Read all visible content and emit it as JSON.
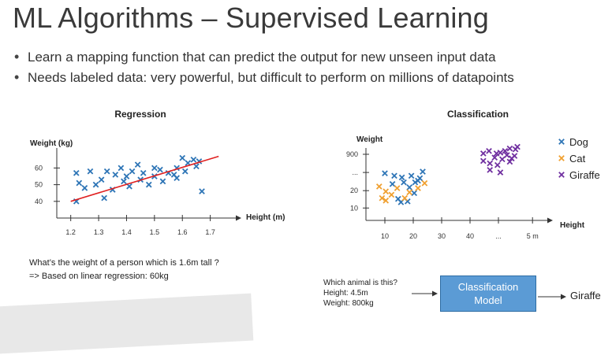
{
  "title": "ML Algorithms – Supervised Learning",
  "bullets": [
    "Learn a mapping function that can predict the output for new unseen input data",
    "Needs labeled data: very powerful, but difficult to perform on millions of datapoints"
  ],
  "question": {
    "line1": "What’s the weight of a person which is 1.6m tall ?",
    "line2": "=> Based on linear regression: 60kg"
  },
  "classify": {
    "which_lines": [
      "Which animal is this?",
      "Height: 4.5m",
      "Weight: 800kg"
    ],
    "model_line1": "Classification",
    "model_line2": "Model",
    "answer": "Giraffe"
  },
  "chart_data": [
    {
      "type": "scatter",
      "title": "Regression",
      "xlabel": "Height (m)",
      "ylabel": "Weight (kg)",
      "x_ticks": [
        "1.2",
        "1.3",
        "1.4",
        "1.5",
        "1.6",
        "1.7"
      ],
      "y_ticks": [
        "60",
        "50",
        "40"
      ],
      "xlim": [
        1.15,
        1.8
      ],
      "ylim": [
        30,
        72
      ],
      "points": [
        {
          "x": 1.22,
          "y": 40
        },
        {
          "x": 1.23,
          "y": 51
        },
        {
          "x": 1.22,
          "y": 57
        },
        {
          "x": 1.25,
          "y": 48
        },
        {
          "x": 1.27,
          "y": 58
        },
        {
          "x": 1.29,
          "y": 50
        },
        {
          "x": 1.31,
          "y": 53
        },
        {
          "x": 1.32,
          "y": 42
        },
        {
          "x": 1.33,
          "y": 58
        },
        {
          "x": 1.35,
          "y": 47
        },
        {
          "x": 1.36,
          "y": 56
        },
        {
          "x": 1.38,
          "y": 60
        },
        {
          "x": 1.39,
          "y": 52
        },
        {
          "x": 1.4,
          "y": 55
        },
        {
          "x": 1.41,
          "y": 49
        },
        {
          "x": 1.42,
          "y": 58
        },
        {
          "x": 1.44,
          "y": 62
        },
        {
          "x": 1.45,
          "y": 53
        },
        {
          "x": 1.46,
          "y": 57
        },
        {
          "x": 1.48,
          "y": 50
        },
        {
          "x": 1.5,
          "y": 55
        },
        {
          "x": 1.5,
          "y": 60
        },
        {
          "x": 1.52,
          "y": 59
        },
        {
          "x": 1.53,
          "y": 52
        },
        {
          "x": 1.55,
          "y": 57
        },
        {
          "x": 1.57,
          "y": 56
        },
        {
          "x": 1.58,
          "y": 54
        },
        {
          "x": 1.58,
          "y": 60
        },
        {
          "x": 1.6,
          "y": 66
        },
        {
          "x": 1.61,
          "y": 58
        },
        {
          "x": 1.62,
          "y": 63
        },
        {
          "x": 1.64,
          "y": 65
        },
        {
          "x": 1.65,
          "y": 61
        },
        {
          "x": 1.66,
          "y": 64
        },
        {
          "x": 1.67,
          "y": 46
        }
      ],
      "fit_line": [
        {
          "x": 1.2,
          "y": 40
        },
        {
          "x": 1.73,
          "y": 67
        }
      ],
      "point_color": "#2e75b6",
      "line_color": "#e02020"
    },
    {
      "type": "scatter",
      "title": "Classification",
      "xlabel": "Height",
      "ylabel": "Weight",
      "x_ticks": [
        "10",
        "20",
        "30",
        "40",
        "...",
        "5 m"
      ],
      "y_ticks": [
        "900",
        "...",
        "20",
        "10"
      ],
      "series": [
        {
          "name": "Dog",
          "color": "#2e75b6",
          "points": [
            {
              "x": 1.0,
              "y": 2.85
            },
            {
              "x": 1.5,
              "y": 2.7
            },
            {
              "x": 1.9,
              "y": 2.6
            },
            {
              "x": 2.0,
              "y": 2.3
            },
            {
              "x": 1.4,
              "y": 2.2
            },
            {
              "x": 2.3,
              "y": 2.0
            },
            {
              "x": 2.4,
              "y": 2.7
            },
            {
              "x": 2.6,
              "y": 2.3
            },
            {
              "x": 2.75,
              "y": 2.4
            },
            {
              "x": 2.85,
              "y": 2.55
            },
            {
              "x": 3.0,
              "y": 2.95
            },
            {
              "x": 2.55,
              "y": 1.65
            },
            {
              "x": 1.7,
              "y": 1.3
            },
            {
              "x": 2.2,
              "y": 1.15
            },
            {
              "x": 1.85,
              "y": 1.1
            }
          ]
        },
        {
          "name": "Cat",
          "color": "#f0a030",
          "points": [
            {
              "x": 0.7,
              "y": 2.05
            },
            {
              "x": 0.85,
              "y": 1.35
            },
            {
              "x": 1.05,
              "y": 1.75
            },
            {
              "x": 1.35,
              "y": 1.55
            },
            {
              "x": 1.65,
              "y": 1.95
            },
            {
              "x": 2.05,
              "y": 1.35
            },
            {
              "x": 2.3,
              "y": 1.7
            },
            {
              "x": 2.75,
              "y": 1.95
            },
            {
              "x": 3.1,
              "y": 2.25
            },
            {
              "x": 1.05,
              "y": 1.2
            }
          ]
        },
        {
          "name": "Giraffe",
          "color": "#7030a0",
          "points": [
            {
              "x": 6.2,
              "y": 4.05
            },
            {
              "x": 6.5,
              "y": 4.2
            },
            {
              "x": 6.2,
              "y": 3.6
            },
            {
              "x": 6.55,
              "y": 3.45
            },
            {
              "x": 6.8,
              "y": 3.8
            },
            {
              "x": 6.9,
              "y": 4.05
            },
            {
              "x": 7.1,
              "y": 4.1
            },
            {
              "x": 7.35,
              "y": 4.2
            },
            {
              "x": 7.45,
              "y": 3.95
            },
            {
              "x": 7.6,
              "y": 4.35
            },
            {
              "x": 7.2,
              "y": 3.7
            },
            {
              "x": 7.7,
              "y": 3.75
            },
            {
              "x": 7.9,
              "y": 4.3
            },
            {
              "x": 8.0,
              "y": 4.45
            },
            {
              "x": 6.95,
              "y": 3.35
            },
            {
              "x": 6.55,
              "y": 3.05
            },
            {
              "x": 7.1,
              "y": 2.9
            },
            {
              "x": 7.6,
              "y": 3.55
            },
            {
              "x": 7.85,
              "y": 3.9
            }
          ]
        }
      ]
    }
  ]
}
